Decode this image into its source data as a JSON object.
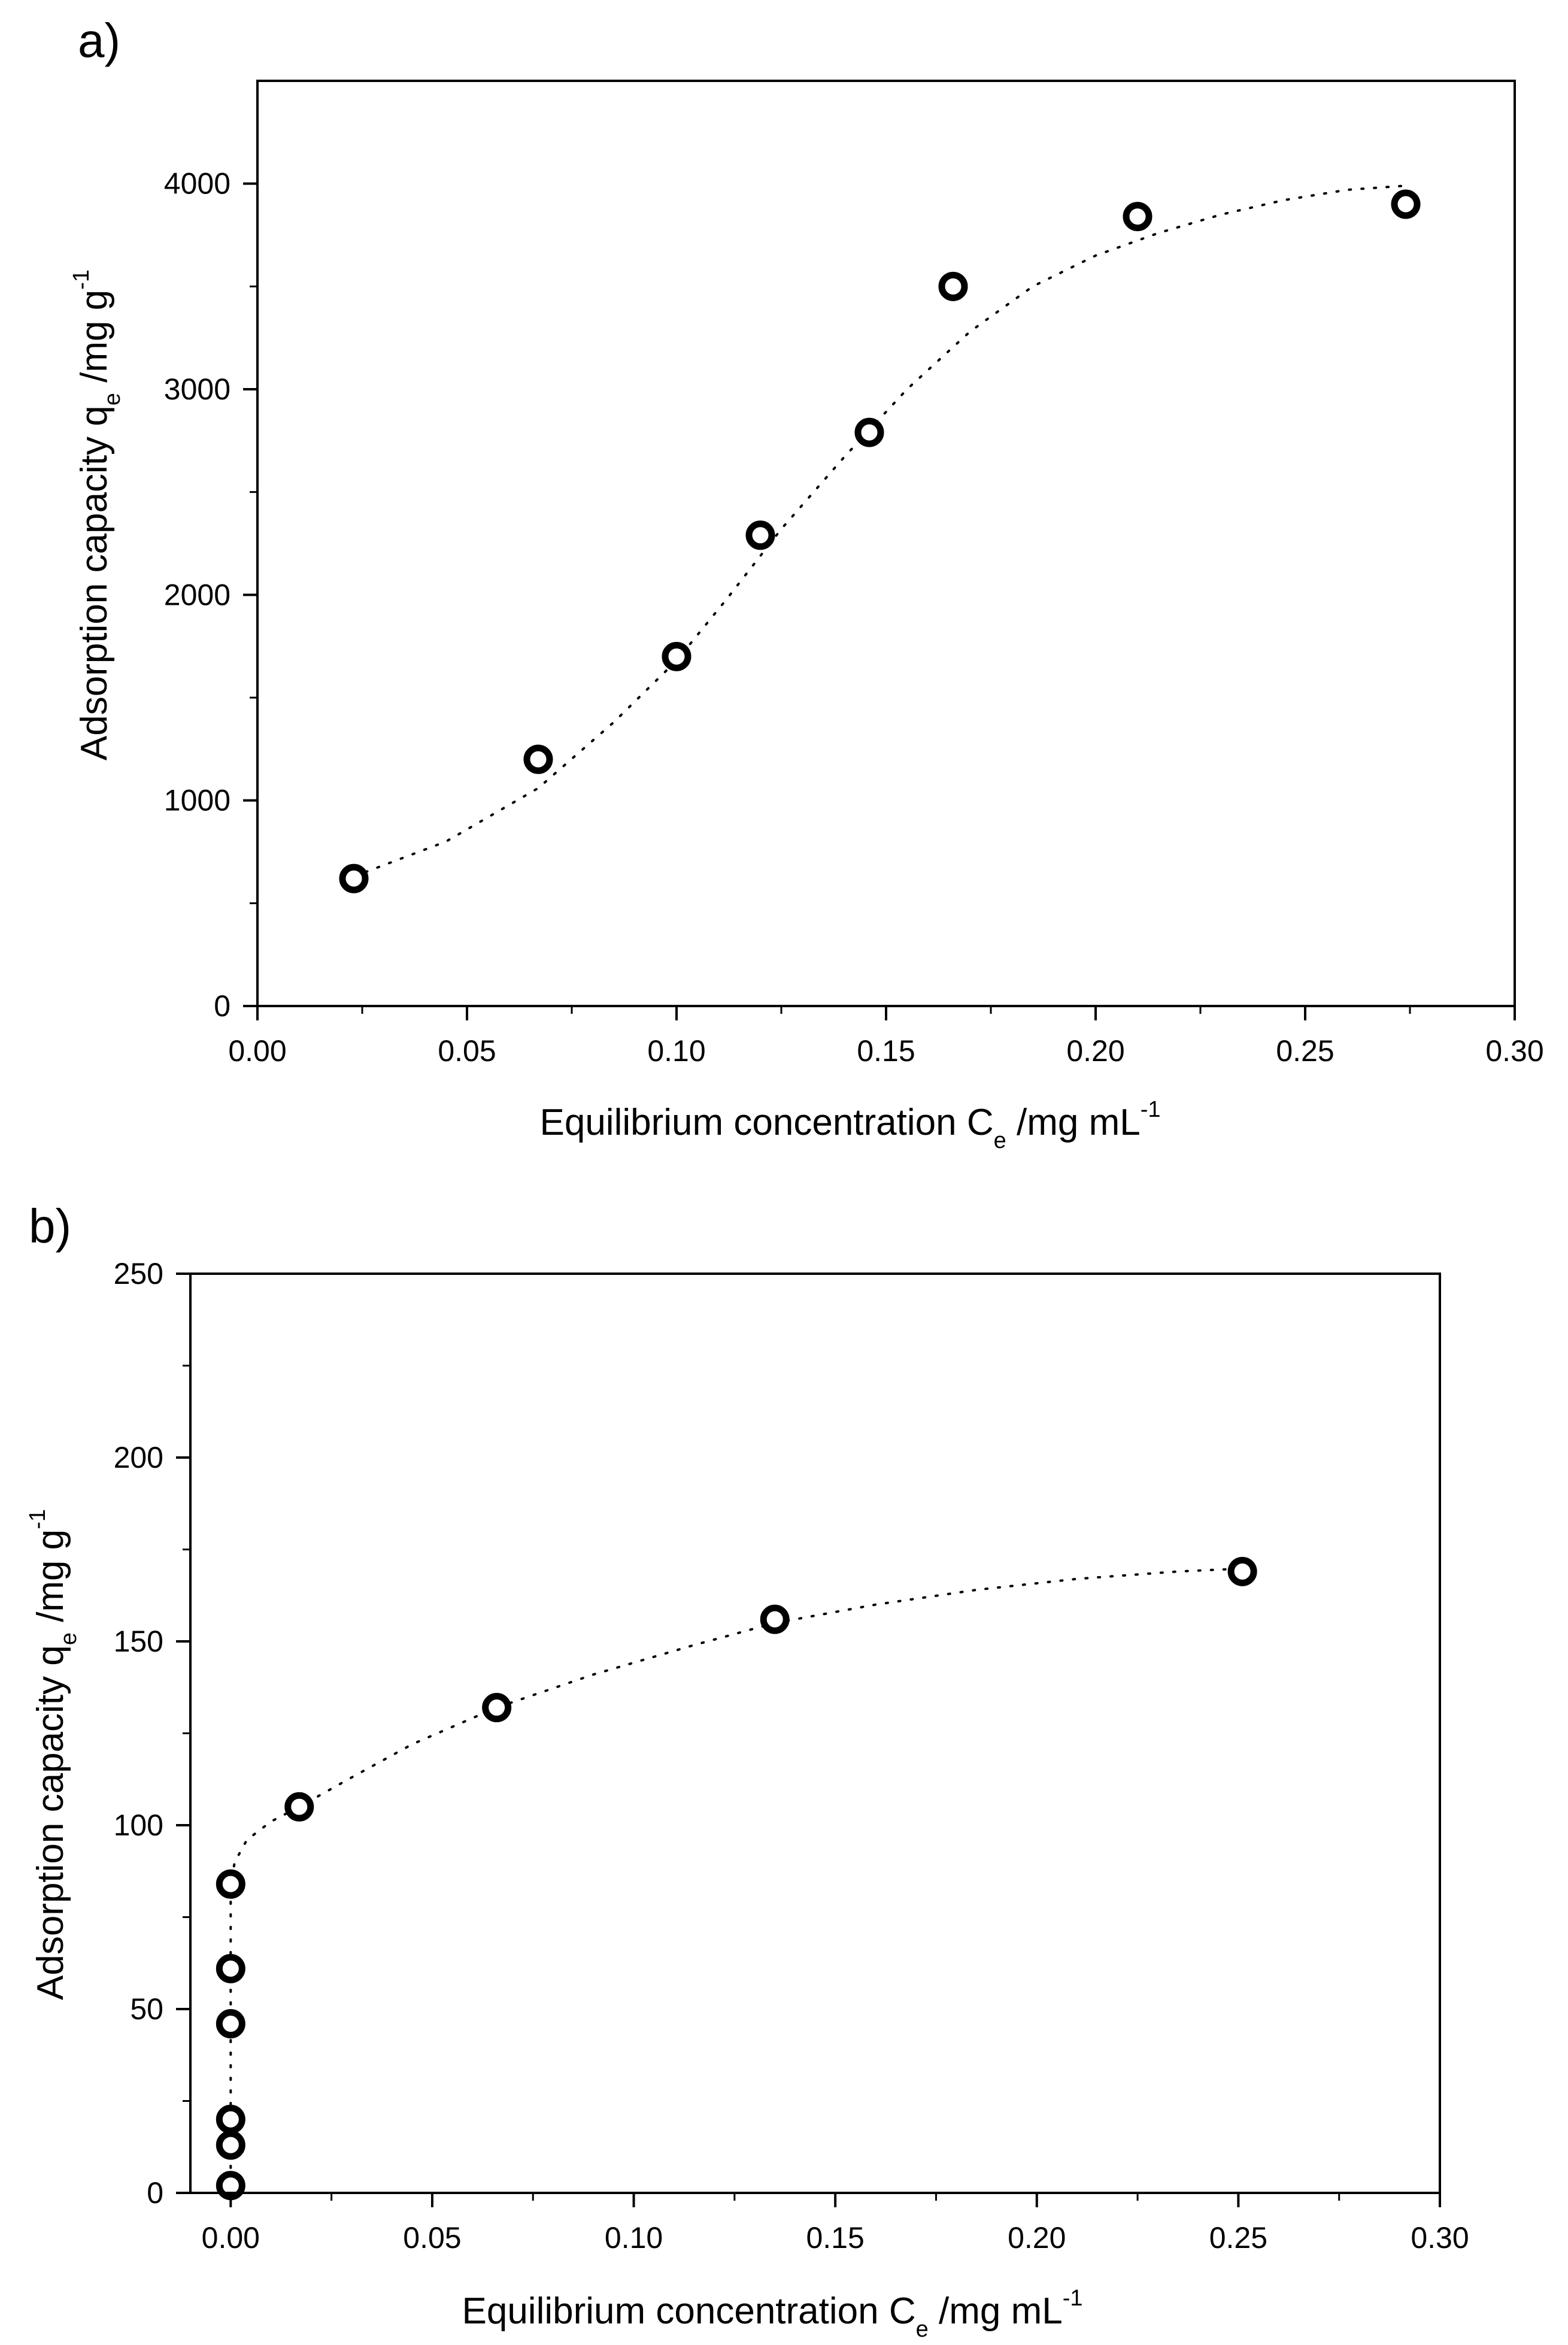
{
  "figure": {
    "panels": [
      "a)",
      "b)"
    ]
  },
  "chart_data": [
    {
      "type": "scatter",
      "panel_label": "a)",
      "xlabel": "Equilibrium concentration C",
      "xlabel_sub": "e",
      "xlabel_unit": " /mg mL",
      "xlabel_sup": "-1",
      "ylabel": "Adsorption capacity q",
      "ylabel_sub": "e",
      "ylabel_unit": " /mg g",
      "ylabel_sup": "-1",
      "xlim": [
        0,
        0.3
      ],
      "ylim": [
        0,
        4500
      ],
      "xticks": [
        0,
        0.05,
        0.1,
        0.15,
        0.2,
        0.25,
        0.3
      ],
      "xtick_labels": [
        "0.00",
        "0.05",
        "0.10",
        "0.15",
        "0.20",
        "0.25",
        "0.30"
      ],
      "yticks": [
        0,
        1000,
        2000,
        3000,
        4000
      ],
      "ytick_labels": [
        "0",
        "1000",
        "2000",
        "3000",
        "4000"
      ],
      "marker": "open-circle",
      "fit_line": "dotted",
      "x": [
        0.023,
        0.067,
        0.1,
        0.12,
        0.146,
        0.166,
        0.21,
        0.274
      ],
      "y": [
        620,
        1200,
        1700,
        2290,
        2790,
        3500,
        3840,
        3900
      ],
      "fit_x": [
        0.023,
        0.045,
        0.067,
        0.085,
        0.1,
        0.112,
        0.125,
        0.14,
        0.155,
        0.17,
        0.185,
        0.2,
        0.215,
        0.23,
        0.245,
        0.26,
        0.274
      ],
      "fit_y": [
        630,
        800,
        1060,
        1380,
        1680,
        1980,
        2320,
        2670,
        3000,
        3280,
        3500,
        3650,
        3760,
        3850,
        3920,
        3970,
        3990
      ]
    },
    {
      "type": "scatter",
      "panel_label": "b)",
      "xlabel": "Equilibrium concentration C",
      "xlabel_sub": "e",
      "xlabel_unit": " /mg mL",
      "xlabel_sup": "-1",
      "ylabel": "Adsorption capacity q",
      "ylabel_sub": "e",
      "ylabel_unit": " /mg g",
      "ylabel_sup": "-1",
      "xlim": [
        -0.01,
        0.3
      ],
      "ylim": [
        0,
        250
      ],
      "xticks": [
        0,
        0.05,
        0.1,
        0.15,
        0.2,
        0.25,
        0.3
      ],
      "xtick_labels": [
        "0.00",
        "0.05",
        "0.10",
        "0.15",
        "0.20",
        "0.25",
        "0.30"
      ],
      "yticks": [
        0,
        50,
        100,
        150,
        200,
        250
      ],
      "ytick_labels": [
        "0",
        "50",
        "100",
        "150",
        "200",
        "250"
      ],
      "marker": "open-circle",
      "fit_line": "dotted",
      "x": [
        0.0,
        0.0,
        0.0,
        0.0,
        0.0,
        0.0,
        0.017,
        0.066,
        0.135,
        0.251
      ],
      "y": [
        2,
        13,
        20,
        46,
        61,
        84,
        105,
        132,
        156,
        169
      ],
      "fit_x": [
        0.0,
        0.0,
        0.0,
        0.0,
        0.0,
        0.0,
        0.001,
        0.004,
        0.01,
        0.017,
        0.03,
        0.045,
        0.066,
        0.09,
        0.115,
        0.135,
        0.16,
        0.185,
        0.21,
        0.235,
        0.255
      ],
      "fit_y": [
        0,
        15,
        30,
        50,
        70,
        84,
        90,
        96,
        101,
        105,
        113,
        122,
        132,
        141,
        149,
        155,
        160,
        164,
        167,
        169,
        170
      ]
    }
  ]
}
